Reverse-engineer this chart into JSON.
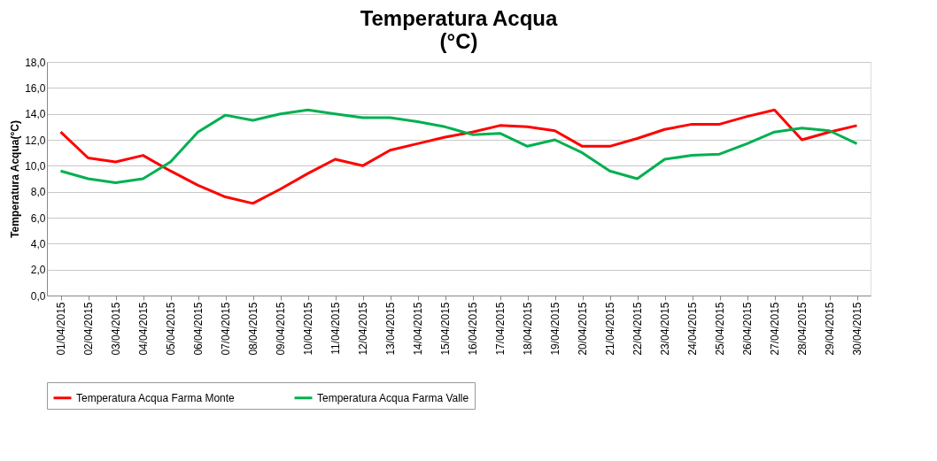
{
  "chart_data": {
    "type": "line",
    "title": [
      "Temperatura Acqua",
      "(°C)"
    ],
    "ylabel": "Temperatura Acqua(°C)",
    "categories": [
      "01/04/2015",
      "02/04/2015",
      "03/04/2015",
      "04/04/2015",
      "05/04/2015",
      "06/04/2015",
      "07/04/2015",
      "08/04/2015",
      "09/04/2015",
      "10/04/2015",
      "11/04/2015",
      "12/04/2015",
      "13/04/2015",
      "14/04/2015",
      "15/04/2015",
      "16/04/2015",
      "17/04/2015",
      "18/04/2015",
      "19/04/2015",
      "20/04/2015",
      "21/04/2015",
      "22/04/2015",
      "23/04/2015",
      "24/04/2015",
      "25/04/2015",
      "26/04/2015",
      "27/04/2015",
      "28/04/2015",
      "29/04/2015",
      "30/04/2015"
    ],
    "series": [
      {
        "name": "Temperatura Acqua Farma Monte",
        "color": "#ff0000",
        "values": [
          12.6,
          10.6,
          10.3,
          10.8,
          9.6,
          8.5,
          7.6,
          7.1,
          8.2,
          9.4,
          10.5,
          10.0,
          11.2,
          11.7,
          12.2,
          12.6,
          13.1,
          13.0,
          12.7,
          11.5,
          11.5,
          12.1,
          12.8,
          13.2,
          13.2,
          13.8,
          14.3,
          12.0,
          12.6,
          13.1
        ]
      },
      {
        "name": "Temperatura Acqua Farma Valle",
        "color": "#00b050",
        "values": [
          9.6,
          9.0,
          8.7,
          9.0,
          10.3,
          12.6,
          13.9,
          13.5,
          14.0,
          14.3,
          14.0,
          13.7,
          13.7,
          13.4,
          13.0,
          12.4,
          12.5,
          11.5,
          12.0,
          11.0,
          9.6,
          9.0,
          10.5,
          10.8,
          10.9,
          11.7,
          12.6,
          12.9,
          12.7,
          11.7
        ]
      }
    ],
    "ylim": [
      0,
      18
    ],
    "yticks": [
      {
        "value": 0,
        "label": "0,0"
      },
      {
        "value": 2,
        "label": "2,0"
      },
      {
        "value": 4,
        "label": "4,0"
      },
      {
        "value": 6,
        "label": "6,0"
      },
      {
        "value": 8,
        "label": "8,0"
      },
      {
        "value": 10,
        "label": "10,0"
      },
      {
        "value": 12,
        "label": "12,0"
      },
      {
        "value": 14,
        "label": "14,0"
      },
      {
        "value": 16,
        "label": "16,0"
      },
      {
        "value": 18,
        "label": "18,0"
      }
    ],
    "grid": "y",
    "legend": "bottom",
    "marker": "none",
    "line_style": "solid"
  }
}
